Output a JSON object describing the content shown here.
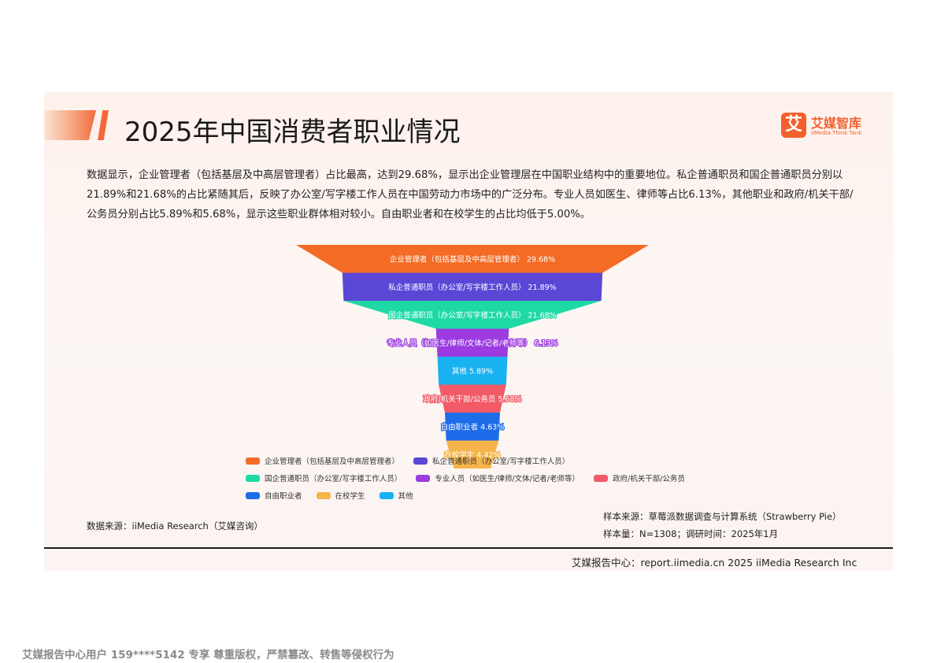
{
  "title": "2025年中国消费者职业情况",
  "logo": {
    "cn": "艾媒智库",
    "en": "iiMedia Think Tank",
    "mark": "艾"
  },
  "description": "数据显示，企业管理者（包括基层及中高层管理者）占比最高，达到29.68%，显示出企业管理层在中国职业结构中的重要地位。私企普通职员和国企普通职员分别以21.89%和21.68%的占比紧随其后，反映了办公室/写字楼工作人员在中国劳动力市场中的广泛分布。专业人员如医生、律师等占比6.13%，其他职业和政府/机关干部/公务员分别占比5.89%和5.68%，显示这些职业群体相对较小。自由职业者和在校学生的占比均低于5.00%。",
  "chart_data": {
    "type": "funnel",
    "title": "",
    "unit": "%",
    "series": [
      {
        "name": "企业管理者（包括基层及中高层管理者）",
        "value": 29.68,
        "color": "#f46b25"
      },
      {
        "name": "私企普通职员（办公室/写字楼工作人员）",
        "value": 21.89,
        "color": "#5b47d6"
      },
      {
        "name": "国企普通职员（办公室/写字楼工作人员）",
        "value": 21.68,
        "color": "#1fd9a5"
      },
      {
        "name": "专业人员（如医生/律师/文体/记者/老师等）",
        "value": 6.13,
        "color": "#9b3be0"
      },
      {
        "name": "其他",
        "value": 5.89,
        "color": "#19b2f0"
      },
      {
        "name": "政府/机关干部/公务员",
        "value": 5.68,
        "color": "#f25a67"
      },
      {
        "name": "自由职业者",
        "value": 4.63,
        "color": "#1d6ce8"
      },
      {
        "name": "在校学生",
        "value": 4.42,
        "color": "#f6b54a"
      }
    ],
    "legend_position": "bottom"
  },
  "legend_rows": [
    [
      0,
      1
    ],
    [
      2,
      3,
      5
    ],
    [
      6,
      7,
      4
    ]
  ],
  "source_left": "数据来源：iiMedia Research（艾媒咨询）",
  "sample_source": "样本来源：草莓派数据调查与计算系统（Strawberry Pie）",
  "sample_size": "样本量：N=1308；调研时间：2025年1月",
  "footer": "艾媒报告中心：report.iimedia.cn 2025 iiMedia Research Inc",
  "watermark": "艾媒报告中心用户 159****5142 专享 尊重版权，严禁篡改、转售等侵权行为"
}
